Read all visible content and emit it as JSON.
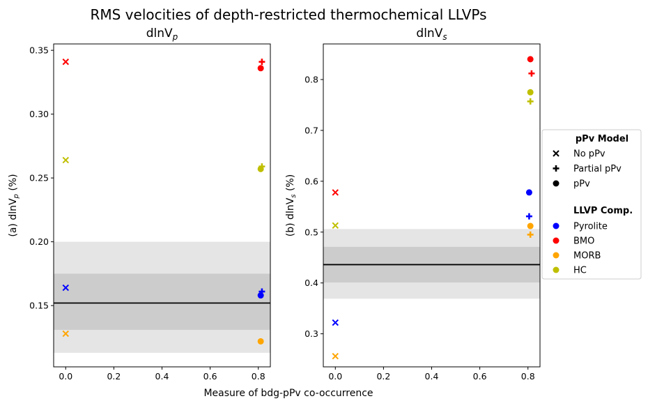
{
  "figure": {
    "title": "RMS velocities of depth-restricted thermochemical LLVPs",
    "shared_xlabel": "Measure of bdg-pPv co-occurrence"
  },
  "legend": {
    "model_title": "pPv Model",
    "model_entries": [
      {
        "label": "No pPv",
        "marker": "x"
      },
      {
        "label": "Partial pPv",
        "marker": "plus"
      },
      {
        "label": "pPv",
        "marker": "circle"
      }
    ],
    "comp_title": "LLVP Comp.",
    "comp_entries": [
      {
        "label": "Pyrolite",
        "color": "#0000ff"
      },
      {
        "label": "BMO",
        "color": "#ff0000"
      },
      {
        "label": "MORB",
        "color": "#ffa500"
      },
      {
        "label": "HC",
        "color": "#bfbf00"
      }
    ]
  },
  "chart_data": [
    {
      "type": "scatter",
      "title_main": "dlnV",
      "title_sub": "p",
      "ylabel_prefix": "(a) dlnV",
      "ylabel_sub": "p",
      "ylabel_suffix": " (%)",
      "xlim": [
        -0.05,
        0.85
      ],
      "ylim": [
        0.102,
        0.355
      ],
      "xticks": [
        "0.0",
        "0.2",
        "0.4",
        "0.6",
        "0.8"
      ],
      "xtick_values": [
        0.0,
        0.2,
        0.4,
        0.6,
        0.8
      ],
      "yticks": [
        "0.15",
        "0.20",
        "0.25",
        "0.30",
        "0.35"
      ],
      "ytick_values": [
        0.15,
        0.2,
        0.25,
        0.3,
        0.35
      ],
      "reference_line": 0.152,
      "bands": [
        {
          "y0": 0.113,
          "y1": 0.2,
          "color": "#e5e5e5"
        },
        {
          "y0": 0.131,
          "y1": 0.175,
          "color": "#cccccc"
        }
      ],
      "points": [
        {
          "comp": "BMO",
          "marker": "x",
          "x": 0.0,
          "y": 0.341,
          "color": "#ff0000"
        },
        {
          "comp": "HC",
          "marker": "x",
          "x": 0.0,
          "y": 0.264,
          "color": "#bfbf00"
        },
        {
          "comp": "Pyrolite",
          "marker": "x",
          "x": 0.0,
          "y": 0.164,
          "color": "#0000ff"
        },
        {
          "comp": "MORB",
          "marker": "x",
          "x": 0.0,
          "y": 0.128,
          "color": "#ffa500"
        },
        {
          "comp": "BMO",
          "marker": "plus",
          "x": 0.815,
          "y": 0.341,
          "color": "#ff0000"
        },
        {
          "comp": "BMO",
          "marker": "circle",
          "x": 0.81,
          "y": 0.336,
          "color": "#ff0000"
        },
        {
          "comp": "HC",
          "marker": "plus",
          "x": 0.815,
          "y": 0.259,
          "color": "#bfbf00"
        },
        {
          "comp": "HC",
          "marker": "circle",
          "x": 0.81,
          "y": 0.257,
          "color": "#bfbf00"
        },
        {
          "comp": "Pyrolite",
          "marker": "plus",
          "x": 0.815,
          "y": 0.161,
          "color": "#0000ff"
        },
        {
          "comp": "Pyrolite",
          "marker": "circle",
          "x": 0.81,
          "y": 0.158,
          "color": "#0000ff"
        },
        {
          "comp": "MORB",
          "marker": "circle",
          "x": 0.81,
          "y": 0.122,
          "color": "#ffa500"
        }
      ]
    },
    {
      "type": "scatter",
      "title_main": "dlnV",
      "title_sub": "s",
      "ylabel_prefix": "(b) dlnV",
      "ylabel_sub": "s",
      "ylabel_suffix": " (%)",
      "xlim": [
        -0.05,
        0.85
      ],
      "ylim": [
        0.235,
        0.87
      ],
      "xticks": [
        "0.0",
        "0.2",
        "0.4",
        "0.6",
        "0.8"
      ],
      "xtick_values": [
        0.0,
        0.2,
        0.4,
        0.6,
        0.8
      ],
      "yticks": [
        "0.3",
        "0.4",
        "0.5",
        "0.6",
        "0.7",
        "0.8"
      ],
      "ytick_values": [
        0.3,
        0.4,
        0.5,
        0.6,
        0.7,
        0.8
      ],
      "reference_line": 0.436,
      "bands": [
        {
          "y0": 0.369,
          "y1": 0.506,
          "color": "#e5e5e5"
        },
        {
          "y0": 0.401,
          "y1": 0.471,
          "color": "#cccccc"
        }
      ],
      "points": [
        {
          "comp": "BMO",
          "marker": "x",
          "x": 0.0,
          "y": 0.578,
          "color": "#ff0000"
        },
        {
          "comp": "HC",
          "marker": "x",
          "x": 0.0,
          "y": 0.513,
          "color": "#bfbf00"
        },
        {
          "comp": "Pyrolite",
          "marker": "x",
          "x": 0.0,
          "y": 0.322,
          "color": "#0000ff"
        },
        {
          "comp": "MORB",
          "marker": "x",
          "x": 0.0,
          "y": 0.256,
          "color": "#ffa500"
        },
        {
          "comp": "BMO",
          "marker": "circle",
          "x": 0.81,
          "y": 0.84,
          "color": "#ff0000"
        },
        {
          "comp": "BMO",
          "marker": "plus",
          "x": 0.815,
          "y": 0.812,
          "color": "#ff0000"
        },
        {
          "comp": "HC",
          "marker": "circle",
          "x": 0.81,
          "y": 0.775,
          "color": "#bfbf00"
        },
        {
          "comp": "HC",
          "marker": "plus",
          "x": 0.81,
          "y": 0.757,
          "color": "#bfbf00"
        },
        {
          "comp": "Pyrolite",
          "marker": "circle",
          "x": 0.805,
          "y": 0.578,
          "color": "#0000ff"
        },
        {
          "comp": "Pyrolite",
          "marker": "plus",
          "x": 0.805,
          "y": 0.531,
          "color": "#0000ff"
        },
        {
          "comp": "MORB",
          "marker": "circle",
          "x": 0.81,
          "y": 0.512,
          "color": "#ffa500"
        },
        {
          "comp": "MORB",
          "marker": "plus",
          "x": 0.81,
          "y": 0.495,
          "color": "#ffa500"
        }
      ]
    }
  ]
}
